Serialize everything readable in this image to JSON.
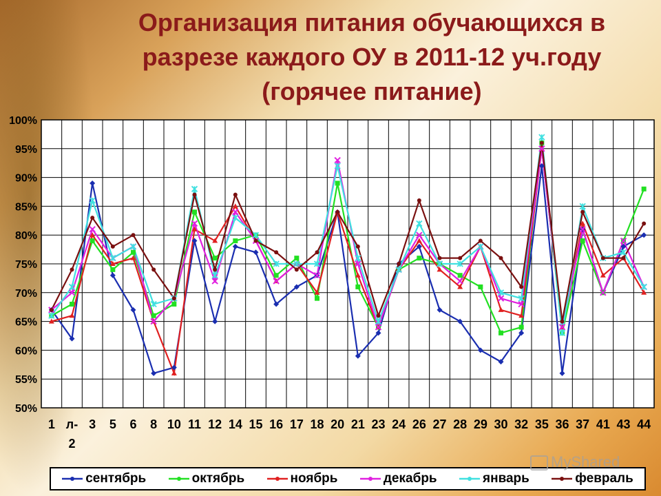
{
  "title_lines": [
    "Организация питания обучающихся в",
    "разрезе каждого ОУ в 2011-12 уч.году",
    "(горячее питание)"
  ],
  "watermark": "MyShared",
  "chart_data": {
    "type": "line",
    "title": "Организация питания обучающихся в разрезе каждого ОУ в 2011-12 уч.году (горячее питание)",
    "categories": [
      "1",
      "л-2",
      "3",
      "5",
      "6",
      "8",
      "10",
      "11",
      "12",
      "14",
      "15",
      "16",
      "17",
      "18",
      "20",
      "21",
      "23",
      "24",
      "26",
      "27",
      "28",
      "29",
      "30",
      "32",
      "35",
      "36",
      "37",
      "41",
      "43",
      "44"
    ],
    "ylim": [
      50,
      100
    ],
    "yticks": [
      50,
      55,
      60,
      65,
      70,
      75,
      80,
      85,
      90,
      95,
      100
    ],
    "ytick_labels": [
      "50%",
      "55%",
      "60%",
      "65%",
      "70%",
      "75%",
      "80%",
      "85%",
      "90%",
      "95%",
      "100%"
    ],
    "grid": true,
    "legend_position": "bottom",
    "series": [
      {
        "name": "сентябрь",
        "color": "#1a2eb0",
        "marker": "diamond",
        "values": [
          67,
          62,
          89,
          73,
          67,
          56,
          57,
          79,
          65,
          78,
          77,
          68,
          71,
          73,
          84,
          59,
          63,
          75,
          78,
          67,
          65,
          60,
          58,
          63,
          92,
          56,
          81,
          70,
          78,
          80
        ]
      },
      {
        "name": "октябрь",
        "color": "#22e022",
        "marker": "square",
        "values": [
          66,
          68,
          79,
          74,
          77,
          66,
          68,
          84,
          76,
          79,
          80,
          73,
          76,
          69,
          89,
          71,
          64,
          74,
          76,
          75,
          73,
          71,
          63,
          64,
          96,
          63,
          79,
          70,
          79,
          88
        ]
      },
      {
        "name": "ноябрь",
        "color": "#e02020",
        "marker": "triangle",
        "values": [
          65,
          66,
          80,
          75,
          76,
          65,
          56,
          81,
          79,
          85,
          79,
          72,
          75,
          70,
          84,
          73,
          64,
          74,
          79,
          74,
          71,
          78,
          67,
          66,
          95,
          64,
          82,
          73,
          76,
          70
        ]
      },
      {
        "name": "декабрь",
        "color": "#e020e0",
        "marker": "x",
        "values": [
          67,
          70,
          81,
          76,
          78,
          65,
          69,
          82,
          72,
          84,
          79,
          72,
          75,
          73,
          93,
          75,
          64,
          74,
          80,
          75,
          72,
          78,
          69,
          68,
          95,
          64,
          81,
          70,
          79,
          71
        ]
      },
      {
        "name": "январь",
        "color": "#40e0e0",
        "marker": "star",
        "values": [
          66,
          71,
          86,
          76,
          78,
          68,
          69,
          88,
          73,
          83,
          80,
          75,
          75,
          75,
          92,
          76,
          65,
          74,
          82,
          75,
          75,
          78,
          70,
          69,
          97,
          63,
          85,
          76,
          77,
          71
        ]
      },
      {
        "name": "февраль",
        "color": "#7a1010",
        "marker": "circle",
        "values": [
          67,
          74,
          83,
          78,
          80,
          74,
          69,
          87,
          74,
          87,
          79,
          77,
          74,
          77,
          84,
          78,
          66,
          75,
          86,
          76,
          76,
          79,
          76,
          71,
          96,
          65,
          84,
          76,
          76,
          82
        ]
      }
    ]
  }
}
